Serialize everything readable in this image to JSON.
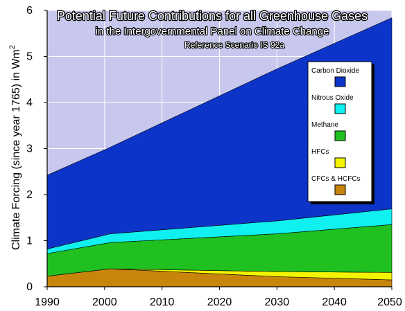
{
  "chart_data": {
    "type": "area",
    "stacked": true,
    "title": "Potential Future Contributions for all Greenhouse Gases",
    "subtitle": "in the Intergovernmental Panel on Climate Change",
    "subtitle2": "Reference Scenario IS 92a",
    "ylabel": "Climate Forcing (since year 1765) in Wm",
    "ylabel_sup": "2",
    "xlim": [
      1990,
      2050
    ],
    "ylim": [
      0,
      6
    ],
    "x_ticks": [
      "1990",
      "2000",
      "2010",
      "2020",
      "2030",
      "2040",
      "2050"
    ],
    "y_ticks": [
      "0",
      "1",
      "2",
      "3",
      "4",
      "5",
      "6"
    ],
    "grid": true,
    "legend_position": "right",
    "background_color": "#c8c8ee",
    "x": [
      1990,
      2001,
      2030,
      2050
    ],
    "series": [
      {
        "name": "CFCs & HCFCs",
        "color": "#c8850b",
        "values": [
          0.23,
          0.39,
          0.22,
          0.15
        ]
      },
      {
        "name": "HFCs",
        "color": "#f4f400",
        "values": [
          0.0,
          0.0,
          0.11,
          0.16
        ]
      },
      {
        "name": "Methane",
        "color": "#1fc01f",
        "values": [
          0.49,
          0.57,
          0.82,
          1.04
        ]
      },
      {
        "name": "Nitrous Oxide",
        "color": "#10f0f0",
        "values": [
          0.1,
          0.19,
          0.28,
          0.34
        ]
      },
      {
        "name": "Carbon Dioxide",
        "color": "#0c34c8",
        "values": [
          1.6,
          1.88,
          3.3,
          4.15
        ]
      }
    ],
    "legend_order": [
      "Carbon Dioxide",
      "Nitrous Oxide",
      "Methane",
      "HFCs",
      "CFCs & HCFCs"
    ]
  }
}
